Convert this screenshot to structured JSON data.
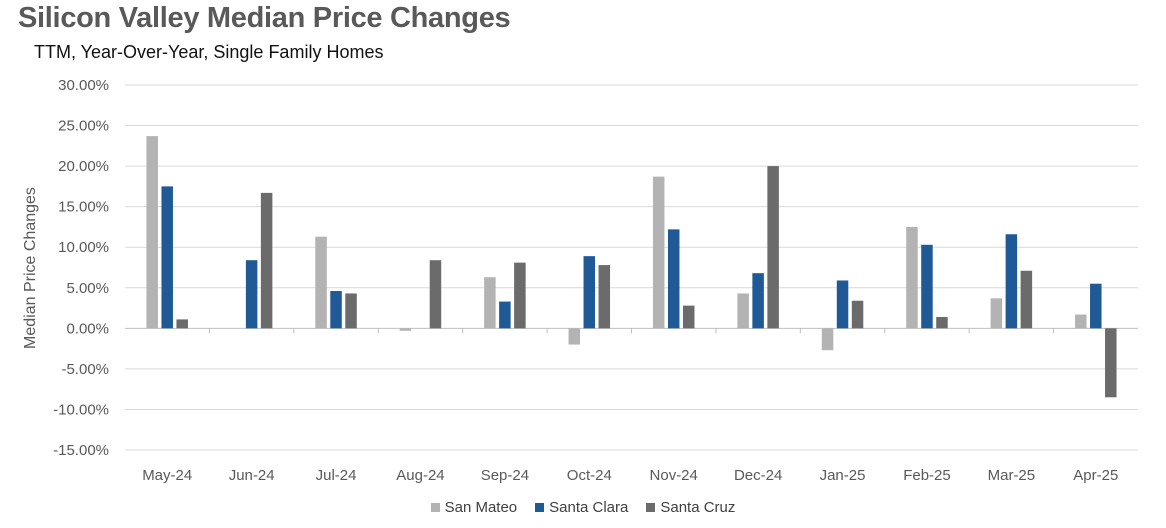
{
  "chart_data": {
    "type": "bar",
    "title": "Silicon Valley Median Price Changes",
    "subtitle": "TTM, Year-Over-Year, Single Family Homes",
    "ylabel": "Median Price Changes",
    "xlabel": "",
    "ylim": [
      -15,
      30
    ],
    "ytick_step": 5,
    "ytick_labels": [
      "30.00%",
      "25.00%",
      "20.00%",
      "15.00%",
      "10.00%",
      "5.00%",
      "0.00%",
      "-5.00%",
      "-10.00%",
      "-15.00%"
    ],
    "grid": true,
    "legend_position": "bottom",
    "categories": [
      "May-24",
      "Jun-24",
      "Jul-24",
      "Aug-24",
      "Sep-24",
      "Oct-24",
      "Nov-24",
      "Dec-24",
      "Jan-25",
      "Feb-25",
      "Mar-25",
      "Apr-25"
    ],
    "series": [
      {
        "name": "San Mateo",
        "color": "#b3b3b3",
        "values": [
          23.7,
          0.0,
          11.3,
          -0.3,
          6.3,
          -2.0,
          18.7,
          4.3,
          -2.7,
          12.5,
          3.7,
          1.7
        ]
      },
      {
        "name": "Santa Clara",
        "color": "#1f5a96",
        "values": [
          17.5,
          8.4,
          4.6,
          0.0,
          3.3,
          8.9,
          12.2,
          6.8,
          5.9,
          10.3,
          11.6,
          5.5
        ]
      },
      {
        "name": "Santa Cruz",
        "color": "#6b6b6b",
        "values": [
          1.1,
          16.7,
          4.3,
          8.4,
          8.1,
          7.8,
          2.8,
          20.0,
          3.4,
          1.4,
          7.1,
          -8.5
        ]
      }
    ]
  }
}
